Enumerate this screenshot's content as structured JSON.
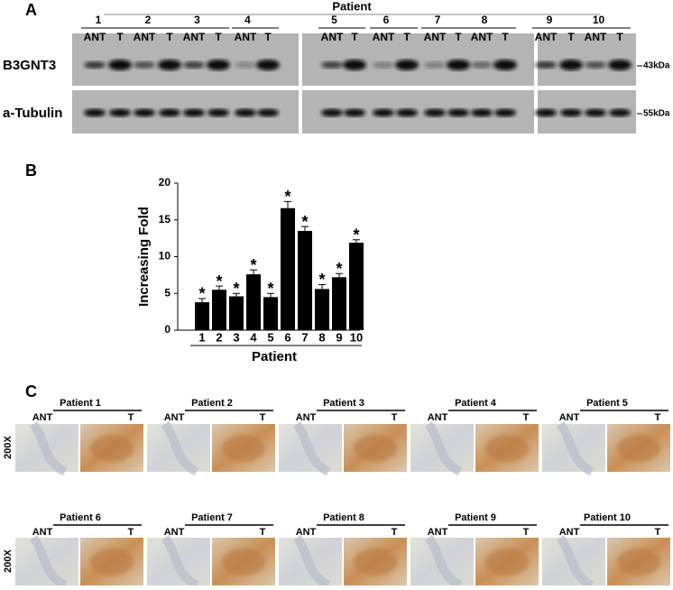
{
  "panel_a": {
    "label": "A",
    "title": "Patient",
    "patients": [
      "1",
      "2",
      "3",
      "4",
      "5",
      "6",
      "7",
      "8",
      "9",
      "10"
    ],
    "lane_labels": [
      "ANT",
      "T"
    ],
    "proteins": [
      {
        "name": "B3GNT3",
        "size": "43kDa"
      },
      {
        "name": "a-Tubulin",
        "size": "55kDa"
      }
    ]
  },
  "chart_data": {
    "type": "bar",
    "panel_label": "B",
    "categories": [
      "1",
      "2",
      "3",
      "4",
      "5",
      "6",
      "7",
      "8",
      "9",
      "10"
    ],
    "values": [
      3.8,
      5.5,
      4.6,
      7.6,
      4.5,
      16.6,
      13.5,
      5.6,
      7.2,
      11.9
    ],
    "errors": [
      0.5,
      0.5,
      0.4,
      0.6,
      0.5,
      0.9,
      0.6,
      0.6,
      0.5,
      0.4
    ],
    "annotations": [
      "*",
      "*",
      "*",
      "*",
      "*",
      "*",
      "*",
      "*",
      "*",
      "*"
    ],
    "color": "#000000",
    "ylim": [
      0,
      20
    ],
    "yticks": [
      0,
      5,
      10,
      15,
      20
    ],
    "y_label": "Increasing  Fold",
    "x_label": "Patient"
  },
  "panel_c": {
    "label": "C",
    "magnification": "200X",
    "lane_labels": [
      "ANT",
      "T"
    ],
    "panels": [
      "Patient 1",
      "Patient 2",
      "Patient 3",
      "Patient 4",
      "Patient 5",
      "Patient 6",
      "Patient 7",
      "Patient 8",
      "Patient 9",
      "Patient 10"
    ]
  }
}
